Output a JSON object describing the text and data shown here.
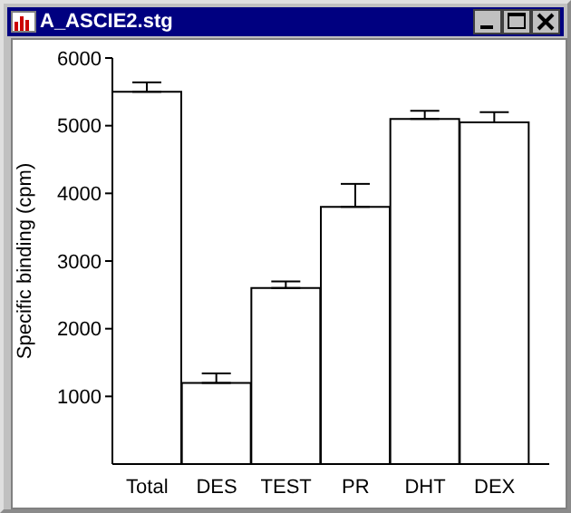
{
  "chart_data": {
    "type": "bar",
    "title": "A_ASCIE2.stg",
    "ylabel": "Specific binding (cpm)",
    "categories": [
      "Total",
      "DES",
      "TEST",
      "PR",
      "DHT",
      "DEX"
    ],
    "values": [
      5500,
      1200,
      2600,
      3800,
      5100,
      5050
    ],
    "errors": [
      [
        5500,
        5640
      ],
      [
        1200,
        1340
      ],
      [
        2600,
        2700
      ],
      [
        3800,
        4140
      ],
      [
        5100,
        5220
      ],
      [
        5050,
        5200
      ]
    ],
    "color": "#ffffff",
    "ylim": [
      0,
      6000
    ],
    "yticks": [
      1000,
      2000,
      3000,
      4000,
      5000,
      6000
    ],
    "grid": false,
    "legend": false
  }
}
